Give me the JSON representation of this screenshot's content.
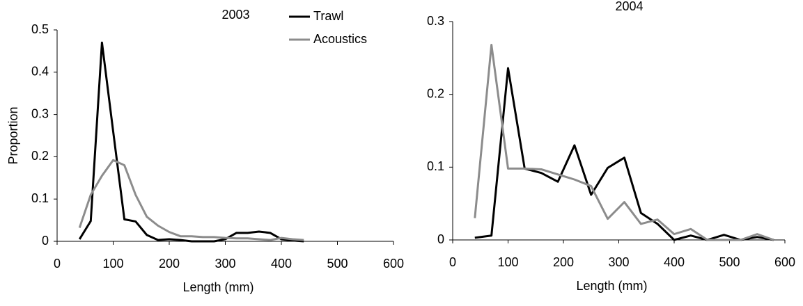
{
  "chart_data": [
    {
      "type": "line",
      "title": "2003",
      "x_label": "Length (mm)",
      "y_label": "Proportion",
      "x": [
        40,
        60,
        80,
        100,
        120,
        140,
        160,
        180,
        200,
        220,
        240,
        260,
        280,
        300,
        320,
        340,
        360,
        380,
        400,
        420,
        440
      ],
      "series": [
        {
          "name": "Trawl",
          "color": "#000000",
          "values": [
            0.005,
            0.048,
            0.47,
            0.26,
            0.052,
            0.047,
            0.015,
            0.003,
            0.005,
            0.003,
            0,
            0,
            0,
            0.005,
            0.02,
            0.02,
            0.023,
            0.02,
            0.005,
            0.002,
            0
          ]
        },
        {
          "name": "Acoustics",
          "color": "#8c8c8c",
          "values": [
            0.032,
            0.11,
            0.155,
            0.192,
            0.18,
            0.11,
            0.058,
            0.037,
            0.022,
            0.012,
            0.012,
            0.01,
            0.01,
            0.008,
            0.007,
            0.007,
            0.005,
            0.003,
            0.008,
            0.005,
            0.003
          ]
        }
      ],
      "xlim": [
        0,
        600
      ],
      "xticks": [
        0,
        100,
        200,
        300,
        400,
        500,
        600
      ],
      "ylim": [
        0,
        0.5
      ],
      "yticks": [
        0,
        0.1,
        0.2,
        0.3,
        0.4,
        0.5
      ],
      "legend": "top-right"
    },
    {
      "type": "line",
      "title": "2004",
      "x_label": "Length (mm)",
      "x": [
        40,
        70,
        100,
        130,
        160,
        190,
        220,
        250,
        280,
        310,
        340,
        370,
        400,
        430,
        460,
        490,
        520,
        550,
        580
      ],
      "series": [
        {
          "color": "#000000",
          "values": [
            0.003,
            0.006,
            0.236,
            0.098,
            0.092,
            0.08,
            0.13,
            0.062,
            0.099,
            0.113,
            0.037,
            0.022,
            0,
            0.006,
            0,
            0.007,
            0,
            0.004,
            0
          ]
        },
        {
          "color": "#8c8c8c",
          "values": [
            0.03,
            0.268,
            0.098,
            0.098,
            0.097,
            0.09,
            0.083,
            0.074,
            0.029,
            0.052,
            0.022,
            0.028,
            0.008,
            0.015,
            0,
            0,
            0,
            0.008,
            0
          ]
        }
      ],
      "xlim": [
        0,
        600
      ],
      "xticks": [
        0,
        100,
        200,
        300,
        400,
        500,
        600
      ],
      "ylim": [
        0,
        0.3
      ],
      "yticks": [
        0,
        0.1,
        0.2,
        0.3
      ]
    }
  ]
}
